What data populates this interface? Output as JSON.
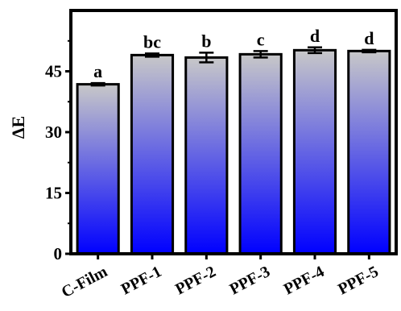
{
  "chart_data": {
    "type": "bar",
    "title": "",
    "xlabel": "",
    "ylabel": "ΔE",
    "categories": [
      "C-Film",
      "PPF-1",
      "PPF-2",
      "PPF-3",
      "PPF-4",
      "PPF-5"
    ],
    "values": [
      41.8,
      49.0,
      48.4,
      49.2,
      50.2,
      50.0
    ],
    "errors": [
      0.3,
      0.4,
      1.2,
      0.8,
      0.7,
      0.3
    ],
    "significance_letters": [
      "a",
      "bc",
      "b",
      "c",
      "d",
      "d"
    ],
    "ylim": [
      0,
      60
    ],
    "yticks": [
      0,
      15,
      30,
      45
    ],
    "grid": false,
    "legend": "none",
    "bar_gradient": {
      "top": "#c8c8c8",
      "bottom": "#0000ff"
    },
    "bar_edge_color": "#000000"
  }
}
